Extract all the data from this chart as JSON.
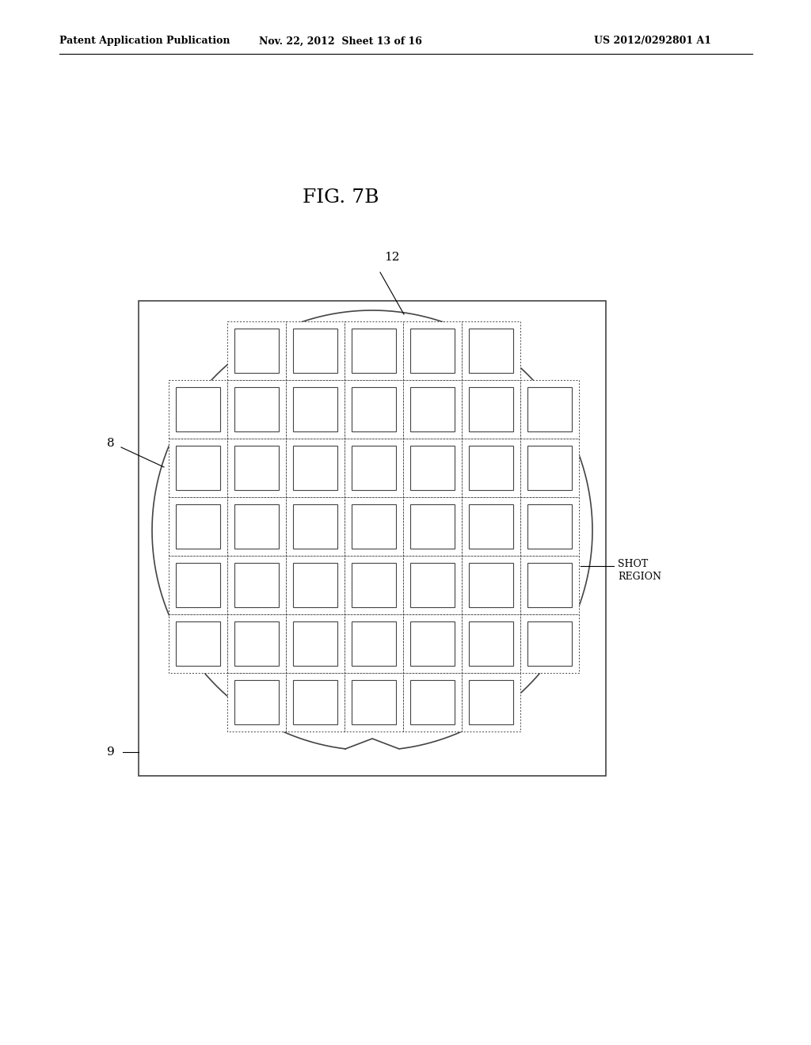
{
  "title": "FIG. 7B",
  "header_left": "Patent Application Publication",
  "header_mid": "Nov. 22, 2012  Sheet 13 of 16",
  "header_right": "US 2012/0292801 A1",
  "bg_color": "#ffffff",
  "label_12": "12",
  "label_8": "8",
  "label_9": "9",
  "label_shot": "SHOT\nREGION",
  "line_color": "#444444",
  "font_size_header": 9,
  "font_size_title": 18,
  "font_size_label": 11,
  "font_size_shot": 9,
  "fig_width": 10.24,
  "fig_height": 13.2,
  "dpi": 100
}
